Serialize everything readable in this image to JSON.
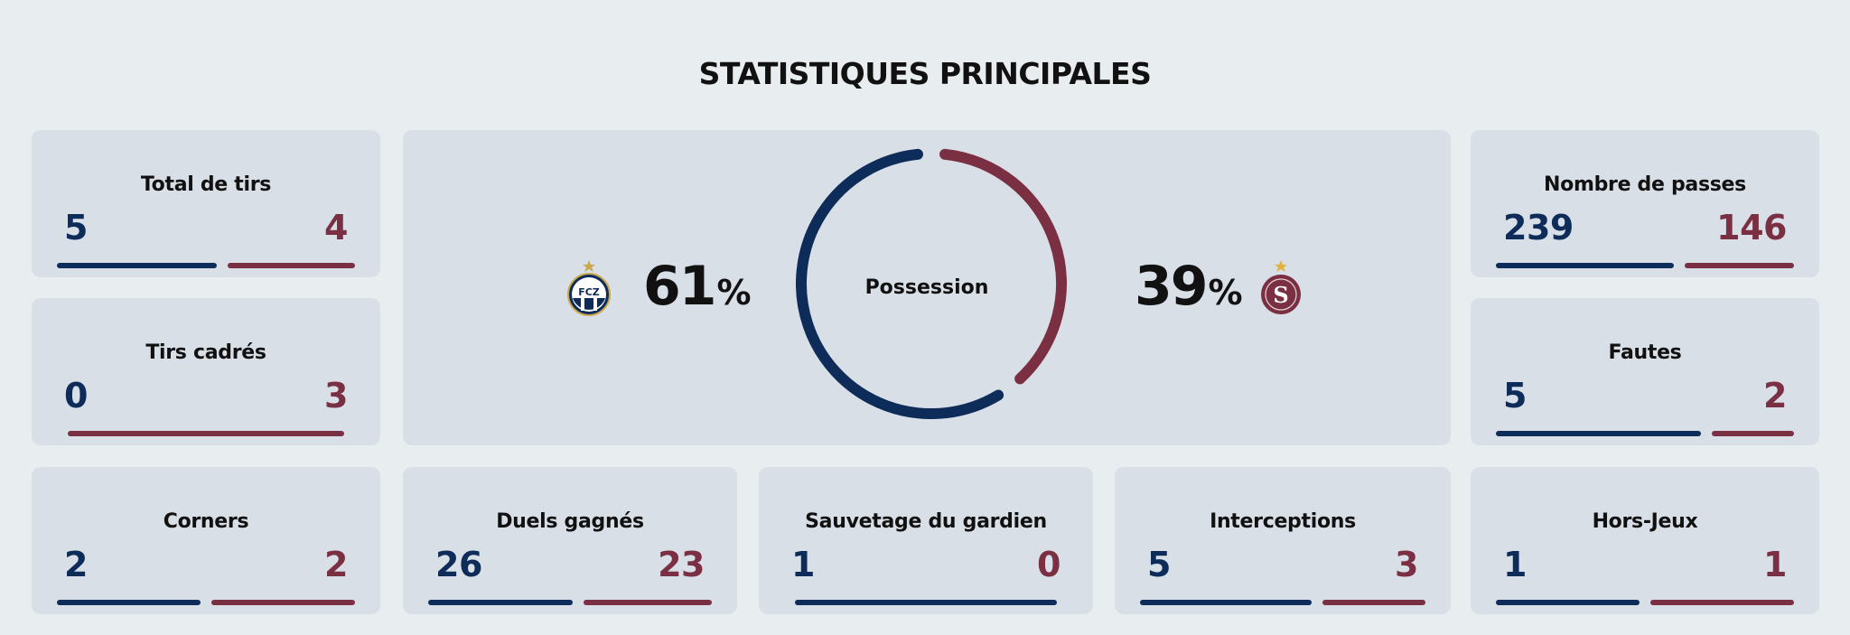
{
  "title": "STATISTIQUES PRINCIPALES",
  "colors": {
    "home": "#0d2c5a",
    "away": "#7a2f42"
  },
  "possession": {
    "label": "Possession",
    "home": {
      "value": "61",
      "symbol": "%",
      "logo": "FCZ",
      "logo_icon": "fcz-crest-icon"
    },
    "away": {
      "value": "39",
      "symbol": "%",
      "logo": "S",
      "logo_icon": "servette-crest-icon"
    }
  },
  "stats": {
    "total_shots": {
      "label": "Total de tirs",
      "home": "5",
      "away": "4"
    },
    "shots_on_target": {
      "label": "Tirs cadrés",
      "home": "0",
      "away": "3"
    },
    "corners": {
      "label": "Corners",
      "home": "2",
      "away": "2"
    },
    "duels_won": {
      "label": "Duels gagnés",
      "home": "26",
      "away": "23"
    },
    "saves": {
      "label": "Sauvetage du gardien",
      "home": "1",
      "away": "0"
    },
    "interceptions": {
      "label": "Interceptions",
      "home": "5",
      "away": "3"
    },
    "passes": {
      "label": "Nombre de passes",
      "home": "239",
      "away": "146"
    },
    "fouls": {
      "label": "Fautes",
      "home": "5",
      "away": "2"
    },
    "offsides": {
      "label": "Hors-Jeux",
      "home": "1",
      "away": "1"
    }
  }
}
